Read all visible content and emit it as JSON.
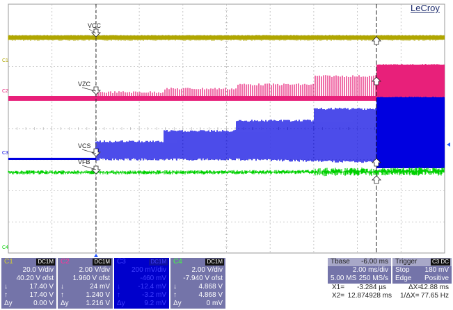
{
  "brand": "LeCroy",
  "chart_data": {
    "type": "line",
    "title": "",
    "grid": true,
    "x_divisions": 10,
    "y_divisions": 8,
    "series": [
      {
        "name": "VCC",
        "channel": "C1",
        "color": "#b0a600",
        "description": "flat trace near top"
      },
      {
        "name": "VZC",
        "channel": "C2",
        "color": "#e8207a",
        "description": "pulsed trace with stepping amplitude"
      },
      {
        "name": "VCS",
        "channel": "C3",
        "color": "#0000e0",
        "description": "pulsed trace with stepping amplitude"
      },
      {
        "name": "VFB",
        "channel": "C4",
        "color": "#00d000",
        "description": "flat noisy trace"
      }
    ],
    "channel_markers": [
      "C1",
      "C2",
      "C3",
      "C4"
    ],
    "cursors": {
      "x1_ms": -0.003284,
      "x2_ms": 12.874928
    }
  },
  "channels": [
    {
      "name": "C1",
      "coupling": "DC1M",
      "color": "#c8c020",
      "rows": [
        [
          "",
          "20.0 V/div"
        ],
        [
          "",
          "40.20 V ofst"
        ],
        [
          "↓",
          "17.40 V"
        ],
        [
          "↑",
          "17.40 V"
        ],
        [
          "Δy",
          "0.00 V"
        ]
      ]
    },
    {
      "name": "C2",
      "coupling": "DC1M",
      "color": "#ff3399",
      "rows": [
        [
          "",
          "2.00 V/div"
        ],
        [
          "",
          "1.960 V ofst"
        ],
        [
          "↓",
          "24 mV"
        ],
        [
          "↑",
          "1.240 V"
        ],
        [
          "Δy",
          "1.216 V"
        ]
      ]
    },
    {
      "name": "C3",
      "coupling": "DC1M",
      "color": "#3030ff",
      "rows": [
        [
          "",
          "200 mV/div"
        ],
        [
          "",
          "-460 mV"
        ],
        [
          "↓",
          "-12.4 mV"
        ],
        [
          "↑",
          "-3.2 mV"
        ],
        [
          "Δy",
          "9.2 mV"
        ]
      ]
    },
    {
      "name": "C4",
      "coupling": "DC1M",
      "color": "#30e030",
      "rows": [
        [
          "",
          "2.00 V/div"
        ],
        [
          "",
          "-7.940 V ofst"
        ],
        [
          "↓",
          "4.868 V"
        ],
        [
          "↑",
          "4.868 V"
        ],
        [
          "Δy",
          "0 mV"
        ]
      ]
    }
  ],
  "timebase": {
    "label": "Tbase",
    "offset": "-6.00 ms",
    "per_div": "2.00 ms/div",
    "memory": "5.00 MS",
    "rate": "250 MS/s"
  },
  "trigger": {
    "label": "Trigger",
    "badge": "C3 DC",
    "mode": "Stop",
    "level": "180 mV",
    "type": "Edge",
    "slope": "Positive"
  },
  "cursors_readout": {
    "x1": "X1=",
    "x1_val": "-3.284 µs",
    "x2": "X2=",
    "x2_val": "12.874928 ms",
    "dx": "ΔX=",
    "dx_val": "12.88 ms",
    "inv": "1/ΔX=",
    "inv_val": "77.65 Hz"
  },
  "trace_labels": {
    "vcc": "VCC",
    "vzc": "VZC",
    "vcs": "VCS",
    "vfb": "VFB"
  }
}
